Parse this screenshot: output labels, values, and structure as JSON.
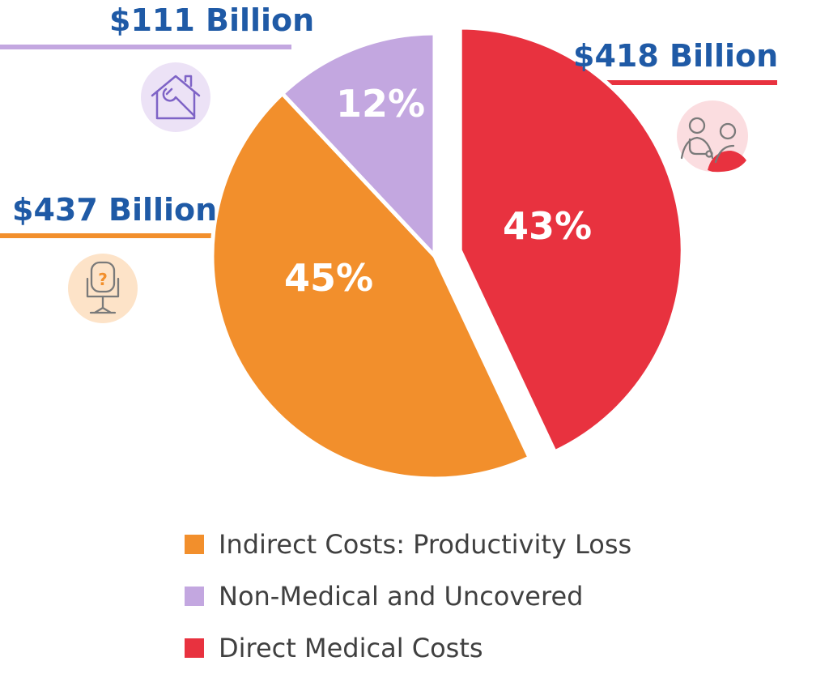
{
  "chart_data": {
    "type": "pie",
    "categories": [
      "Direct Medical Costs",
      "Indirect Costs: Productivity Loss",
      "Non-Medical and Uncovered"
    ],
    "values": [
      43,
      45,
      12
    ],
    "value_labels": [
      "43%",
      "45%",
      "12%"
    ],
    "amounts": [
      "$418 Billion",
      "$437 Billion",
      "$111 Billion"
    ],
    "colors": [
      "#e8323f",
      "#f28f2c",
      "#c3a7e0"
    ],
    "exploded_slice": "Direct Medical Costs",
    "legend_placement": "bottom",
    "legend_order": [
      1,
      2,
      0
    ],
    "title": ""
  },
  "icons": {
    "direct": "doctor-stethoscope-icon",
    "indirect": "office-chair-question-icon",
    "nonmedical": "house-wrench-icon"
  },
  "icon_bg_colors": {
    "direct": "#fbdde0",
    "indirect": "#fde3c8",
    "nonmedical": "#ece2f6"
  },
  "callout_text_color": "#1f5aa6"
}
